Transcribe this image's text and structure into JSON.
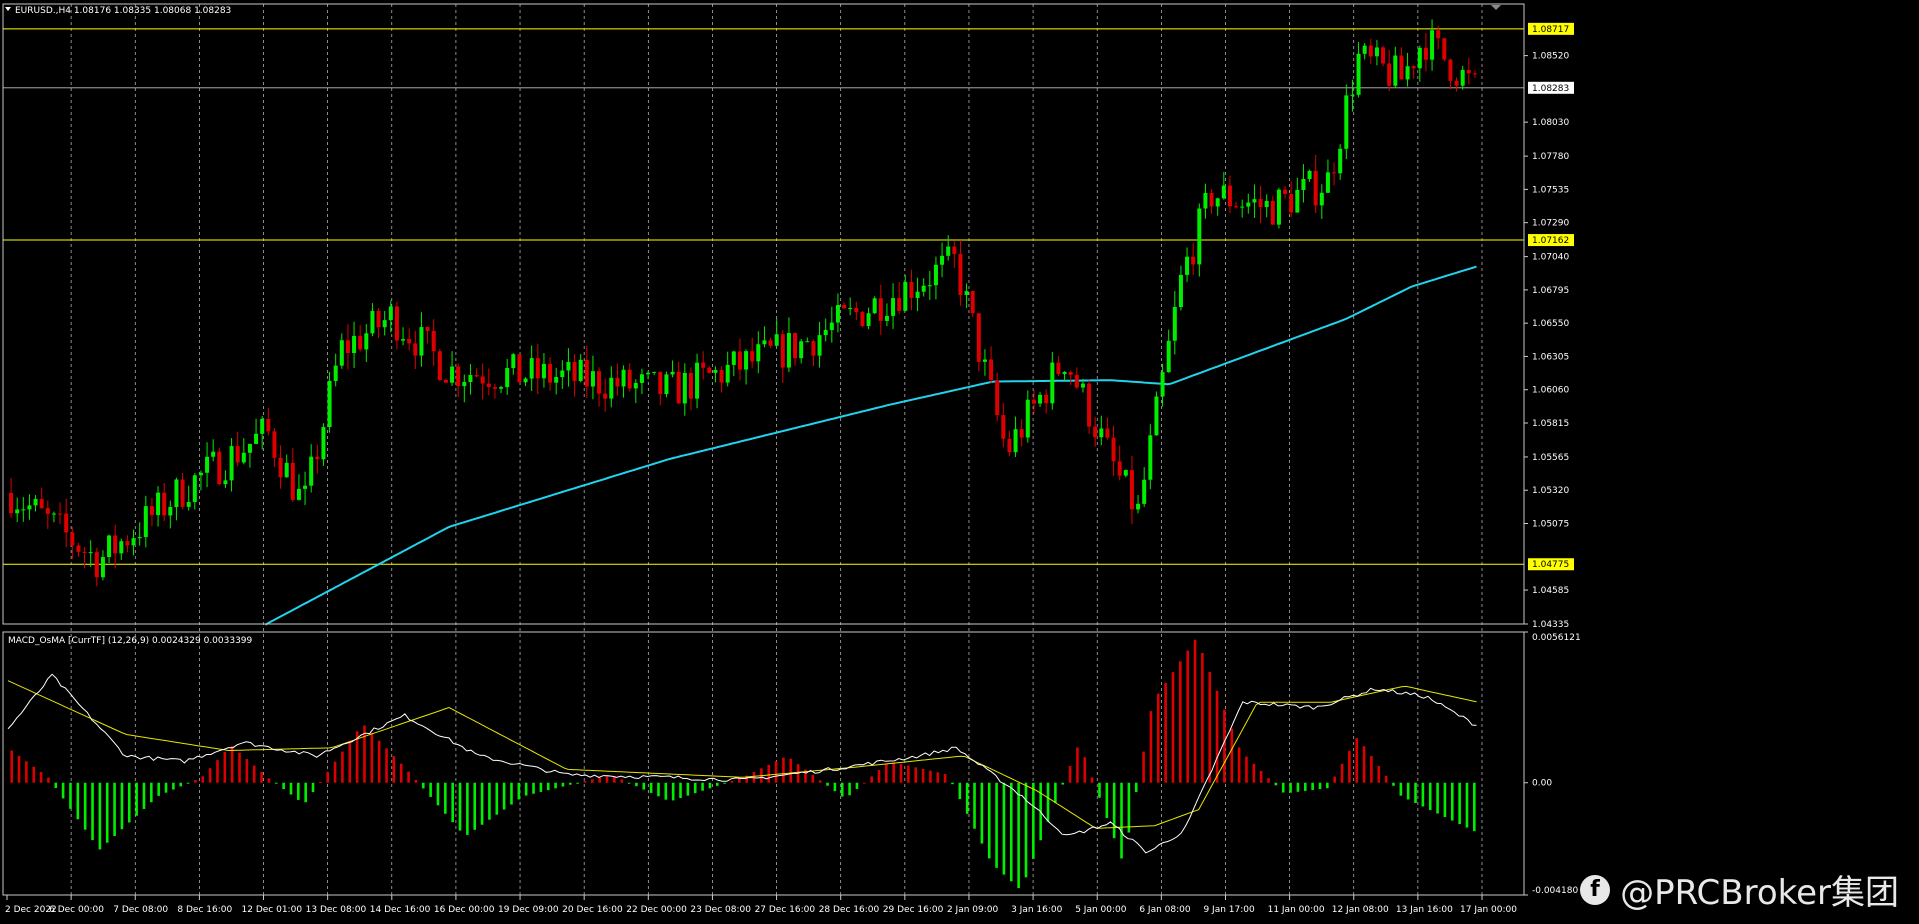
{
  "price_header": "EURUSD.,H4  1.08176 1.08335 1.08068 1.08283",
  "indicator_header": "MACD_OsMA [CurrTF] (12,26,9) 0.0024329 0.0033399",
  "watermark": {
    "icon": "facebook-icon",
    "text": "@PRCBroker集团"
  },
  "colors": {
    "bull": "#00ee00",
    "bear": "#dd0000",
    "ma": "#22d3ee",
    "level": "#ffff00",
    "macd": "#ffffff",
    "signal": "#e6e600",
    "grid": "#c8c8c8"
  },
  "chart_data": [
    {
      "type": "candlestick",
      "symbol": "EURUSD.",
      "timeframe": "H4",
      "ohlc_current": {
        "open": 1.08176,
        "high": 1.08335,
        "low": 1.08068,
        "close": 1.08283
      },
      "y_ticks": [
        "1.08520",
        "1.08030",
        "1.07780",
        "1.07535",
        "1.07290",
        "1.07040",
        "1.06795",
        "1.06550",
        "1.06305",
        "1.06060",
        "1.05815",
        "1.05565",
        "1.05320",
        "1.05075",
        "1.04585",
        "1.04335"
      ],
      "price_labels": [
        {
          "value": "1.08717",
          "price": 1.08717,
          "style": "yellow"
        },
        {
          "value": "1.08283",
          "price": 1.08283,
          "style": "white"
        },
        {
          "value": "1.07162",
          "price": 1.07162,
          "style": "yellow"
        },
        {
          "value": "1.04775",
          "price": 1.04775,
          "style": "yellow"
        }
      ],
      "horizontal_levels": [
        1.08717,
        1.07162,
        1.04775
      ],
      "x_labels": [
        "2 Dec 2022",
        "6 Dec 00:00",
        "7 Dec 08:00",
        "8 Dec 16:00",
        "12 Dec 01:00",
        "13 Dec 08:00",
        "14 Dec 16:00",
        "16 Dec 00:00",
        "19 Dec 09:00",
        "20 Dec 16:00",
        "22 Dec 00:00",
        "23 Dec 08:00",
        "27 Dec 16:00",
        "28 Dec 16:00",
        "29 Dec 16:00",
        "2 Jan 09:00",
        "3 Jan 16:00",
        "5 Jan 00:00",
        "6 Jan 08:00",
        "9 Jan 17:00",
        "11 Jan 00:00",
        "12 Jan 08:00",
        "13 Jan 16:00",
        "17 Jan 00:00"
      ],
      "trend_anchors": [
        {
          "pos": 0.0,
          "price": 1.053
        },
        {
          "pos": 0.06,
          "price": 1.048
        },
        {
          "pos": 0.12,
          "price": 1.0535
        },
        {
          "pos": 0.175,
          "price": 1.0575
        },
        {
          "pos": 0.2,
          "price": 1.052
        },
        {
          "pos": 0.225,
          "price": 1.0635
        },
        {
          "pos": 0.26,
          "price": 1.066
        },
        {
          "pos": 0.3,
          "price": 1.062
        },
        {
          "pos": 0.38,
          "price": 1.0615
        },
        {
          "pos": 0.45,
          "price": 1.0605
        },
        {
          "pos": 0.54,
          "price": 1.064
        },
        {
          "pos": 0.6,
          "price": 1.0675
        },
        {
          "pos": 0.645,
          "price": 1.07
        },
        {
          "pos": 0.68,
          "price": 1.056
        },
        {
          "pos": 0.72,
          "price": 1.063
        },
        {
          "pos": 0.755,
          "price": 1.0545
        },
        {
          "pos": 0.77,
          "price": 1.0515
        },
        {
          "pos": 0.8,
          "price": 1.069
        },
        {
          "pos": 0.82,
          "price": 1.075
        },
        {
          "pos": 0.86,
          "price": 1.074
        },
        {
          "pos": 0.9,
          "price": 1.076
        },
        {
          "pos": 0.92,
          "price": 1.085
        },
        {
          "pos": 0.95,
          "price": 1.0835
        },
        {
          "pos": 0.965,
          "price": 1.0865
        },
        {
          "pos": 1.0,
          "price": 1.0828
        }
      ],
      "moving_average": [
        {
          "pos": 0.175,
          "price": 1.0433
        },
        {
          "pos": 0.3,
          "price": 1.0505
        },
        {
          "pos": 0.45,
          "price": 1.0555
        },
        {
          "pos": 0.6,
          "price": 1.0595
        },
        {
          "pos": 0.67,
          "price": 1.0612
        },
        {
          "pos": 0.75,
          "price": 1.0613
        },
        {
          "pos": 0.79,
          "price": 1.061
        },
        {
          "pos": 0.86,
          "price": 1.0638
        },
        {
          "pos": 0.91,
          "price": 1.0658
        },
        {
          "pos": 0.955,
          "price": 1.0682
        },
        {
          "pos": 1.0,
          "price": 1.0697
        }
      ],
      "candle_count": 240
    },
    {
      "type": "macd_osma",
      "params": "12,26,9",
      "macd_value": 0.0024329,
      "signal_value": 0.0033399,
      "y_labels": [
        {
          "text": "0.0056121",
          "value": 0.0056121
        },
        {
          "text": "0.00",
          "value": 0.0
        },
        {
          "text": "-0.004180",
          "value": -0.00418
        }
      ],
      "macd_anchors": [
        {
          "pos": 0.0,
          "v": 0.002
        },
        {
          "pos": 0.03,
          "v": 0.004
        },
        {
          "pos": 0.08,
          "v": 0.001
        },
        {
          "pos": 0.12,
          "v": 0.0008
        },
        {
          "pos": 0.16,
          "v": 0.0015
        },
        {
          "pos": 0.21,
          "v": 0.001
        },
        {
          "pos": 0.27,
          "v": 0.0025
        },
        {
          "pos": 0.32,
          "v": 0.001
        },
        {
          "pos": 0.38,
          "v": 0.0003
        },
        {
          "pos": 0.45,
          "v": 0.0002
        },
        {
          "pos": 0.5,
          "v": 0.0001
        },
        {
          "pos": 0.56,
          "v": 0.0005
        },
        {
          "pos": 0.62,
          "v": 0.001
        },
        {
          "pos": 0.645,
          "v": 0.0013
        },
        {
          "pos": 0.69,
          "v": -0.0005
        },
        {
          "pos": 0.72,
          "v": -0.002
        },
        {
          "pos": 0.75,
          "v": -0.0015
        },
        {
          "pos": 0.775,
          "v": -0.0026
        },
        {
          "pos": 0.8,
          "v": -0.0018
        },
        {
          "pos": 0.84,
          "v": 0.003
        },
        {
          "pos": 0.89,
          "v": 0.0028
        },
        {
          "pos": 0.93,
          "v": 0.0035
        },
        {
          "pos": 0.965,
          "v": 0.0032
        },
        {
          "pos": 1.0,
          "v": 0.0021
        }
      ],
      "signal_anchors": [
        {
          "pos": 0.0,
          "v": 0.0038
        },
        {
          "pos": 0.08,
          "v": 0.0018
        },
        {
          "pos": 0.15,
          "v": 0.0012
        },
        {
          "pos": 0.22,
          "v": 0.0013
        },
        {
          "pos": 0.3,
          "v": 0.0028
        },
        {
          "pos": 0.38,
          "v": 0.0005
        },
        {
          "pos": 0.5,
          "v": 0.0002
        },
        {
          "pos": 0.58,
          "v": 0.0006
        },
        {
          "pos": 0.65,
          "v": 0.001
        },
        {
          "pos": 0.7,
          "v": -0.0003
        },
        {
          "pos": 0.74,
          "v": -0.0017
        },
        {
          "pos": 0.78,
          "v": -0.0016
        },
        {
          "pos": 0.81,
          "v": -0.001
        },
        {
          "pos": 0.85,
          "v": 0.003
        },
        {
          "pos": 0.9,
          "v": 0.003
        },
        {
          "pos": 0.95,
          "v": 0.0036
        },
        {
          "pos": 1.0,
          "v": 0.003
        }
      ],
      "osma_anchors": [
        {
          "pos": 0.0,
          "v": 0.0012
        },
        {
          "pos": 0.025,
          "v": 0.0002
        },
        {
          "pos": 0.06,
          "v": -0.0025
        },
        {
          "pos": 0.1,
          "v": -0.0005
        },
        {
          "pos": 0.13,
          "v": 0.0002
        },
        {
          "pos": 0.15,
          "v": 0.0014
        },
        {
          "pos": 0.175,
          "v": 0.0002
        },
        {
          "pos": 0.2,
          "v": -0.0008
        },
        {
          "pos": 0.24,
          "v": 0.0022
        },
        {
          "pos": 0.27,
          "v": 0.0005
        },
        {
          "pos": 0.31,
          "v": -0.002
        },
        {
          "pos": 0.35,
          "v": -0.0005
        },
        {
          "pos": 0.41,
          "v": 0.0003
        },
        {
          "pos": 0.45,
          "v": -0.0007
        },
        {
          "pos": 0.5,
          "v": 0.0002
        },
        {
          "pos": 0.53,
          "v": 0.001
        },
        {
          "pos": 0.57,
          "v": -0.0006
        },
        {
          "pos": 0.6,
          "v": 0.0008
        },
        {
          "pos": 0.64,
          "v": 0.0003
        },
        {
          "pos": 0.67,
          "v": -0.003
        },
        {
          "pos": 0.69,
          "v": -0.004
        },
        {
          "pos": 0.73,
          "v": 0.0015
        },
        {
          "pos": 0.76,
          "v": -0.003
        },
        {
          "pos": 0.78,
          "v": 0.003
        },
        {
          "pos": 0.81,
          "v": 0.0054
        },
        {
          "pos": 0.84,
          "v": 0.0012
        },
        {
          "pos": 0.87,
          "v": -0.0004
        },
        {
          "pos": 0.9,
          "v": -0.0002
        },
        {
          "pos": 0.92,
          "v": 0.0017
        },
        {
          "pos": 0.95,
          "v": -0.0005
        },
        {
          "pos": 1.0,
          "v": -0.0018
        }
      ]
    }
  ]
}
